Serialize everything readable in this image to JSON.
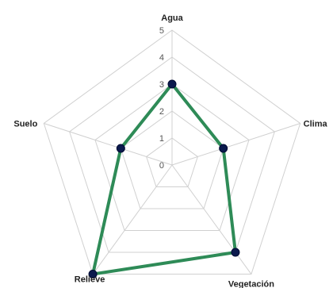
{
  "chart_data": {
    "type": "radar",
    "title": "",
    "axes": [
      "Agua",
      "Clima",
      "Vegetación",
      "Relieve",
      "Suelo"
    ],
    "rlim": [
      0,
      5
    ],
    "ticks": [
      "0",
      "1",
      "2",
      "3",
      "4",
      "5"
    ],
    "grid": true,
    "series": [
      {
        "values": [
          3,
          2,
          4,
          5,
          2
        ]
      }
    ],
    "colors": {
      "series_line": "#2e8b57",
      "marker_fill": "#0b1a4d",
      "grid": "#d0d0d0",
      "axis": "#d0d0d0"
    }
  }
}
